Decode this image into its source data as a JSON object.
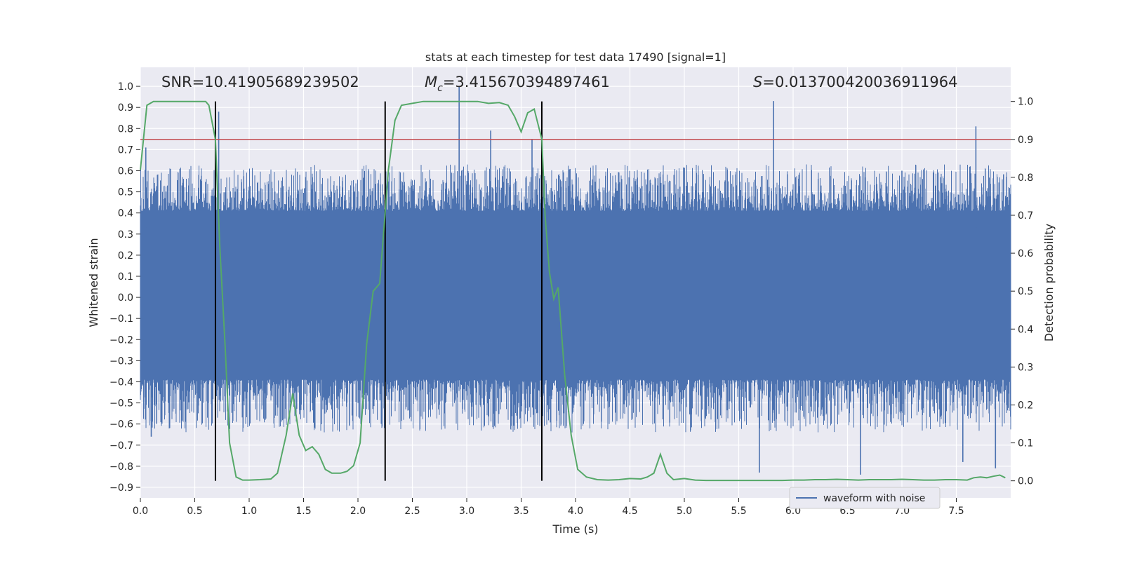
{
  "chart_data": {
    "type": "line",
    "title": "stats at each timestep for test data 17490 [signal=1]",
    "xlabel": "Time (s)",
    "ylabel_left": "Whitened strain",
    "ylabel_right": "Detection probability",
    "xlim": [
      0.0,
      8.0
    ],
    "ylim_left": [
      -0.95,
      1.09
    ],
    "ylim_right": [
      -0.045,
      1.09
    ],
    "x_ticks": [
      "0.0",
      "0.5",
      "1.0",
      "1.5",
      "2.0",
      "2.5",
      "3.0",
      "3.5",
      "4.0",
      "4.5",
      "5.0",
      "5.5",
      "6.0",
      "6.5",
      "7.0",
      "7.5"
    ],
    "y_ticks_left": [
      "−0.9",
      "−0.8",
      "−0.7",
      "−0.6",
      "−0.5",
      "−0.4",
      "−0.3",
      "−0.2",
      "−0.1",
      "0.0",
      "0.1",
      "0.2",
      "0.3",
      "0.4",
      "0.5",
      "0.6",
      "0.7",
      "0.8",
      "0.9",
      "1.0"
    ],
    "y_ticks_right": [
      "0.0",
      "0.1",
      "0.2",
      "0.3",
      "0.4",
      "0.5",
      "0.6",
      "0.7",
      "0.8",
      "0.9",
      "1.0"
    ],
    "annotations": {
      "snr": "SNR=10.41905689239502",
      "mc_symbol": "M",
      "mc_sub": "c",
      "mc_value": "=3.415670394897461",
      "s_symbol": "S",
      "s_value": "=0.013700420036911964"
    },
    "legend": {
      "label": "waveform with noise",
      "placement": "lower-right"
    },
    "threshold_probability": 0.9,
    "vertical_lines_s": [
      0.69,
      2.25,
      3.69
    ],
    "waveform": {
      "name": "waveform with noise",
      "color": "#4c72b0",
      "duration_s": 8.0,
      "dense_band": [
        -0.42,
        0.44
      ],
      "peaks": [
        {
          "t": 0.05,
          "v": 0.71
        },
        {
          "t": 0.1,
          "v": -0.66
        },
        {
          "t": 0.72,
          "v": 0.88
        },
        {
          "t": 1.52,
          "v": 0.57
        },
        {
          "t": 2.93,
          "v": 1.0
        },
        {
          "t": 3.22,
          "v": 0.79
        },
        {
          "t": 3.6,
          "v": 0.75
        },
        {
          "t": 5.82,
          "v": 0.93
        },
        {
          "t": 5.69,
          "v": -0.83
        },
        {
          "t": 6.62,
          "v": -0.84
        },
        {
          "t": 7.68,
          "v": 0.81
        },
        {
          "t": 7.56,
          "v": -0.78
        },
        {
          "t": 7.86,
          "v": -0.81
        },
        {
          "t": 7.0,
          "v": 0.6
        }
      ]
    },
    "probability_series": {
      "name": "Detection probability",
      "color": "#55a868",
      "x": [
        0.0,
        0.06,
        0.12,
        0.2,
        0.3,
        0.4,
        0.5,
        0.6,
        0.63,
        0.69,
        0.73,
        0.78,
        0.82,
        0.88,
        0.94,
        1.0,
        1.1,
        1.2,
        1.26,
        1.34,
        1.4,
        1.46,
        1.52,
        1.58,
        1.64,
        1.7,
        1.76,
        1.84,
        1.9,
        1.96,
        2.02,
        2.08,
        2.14,
        2.2,
        2.28,
        2.34,
        2.4,
        2.5,
        2.6,
        2.7,
        2.8,
        2.9,
        3.0,
        3.1,
        3.2,
        3.3,
        3.38,
        3.44,
        3.5,
        3.56,
        3.62,
        3.69,
        3.72,
        3.76,
        3.8,
        3.84,
        3.9,
        3.96,
        4.02,
        4.1,
        4.2,
        4.3,
        4.4,
        4.5,
        4.6,
        4.66,
        4.72,
        4.78,
        4.84,
        4.9,
        5.0,
        5.1,
        5.2,
        5.3,
        5.4,
        5.5,
        5.6,
        5.7,
        5.8,
        5.9,
        6.0,
        6.1,
        6.2,
        6.3,
        6.4,
        6.5,
        6.6,
        6.7,
        6.8,
        6.9,
        7.0,
        7.1,
        7.2,
        7.3,
        7.4,
        7.5,
        7.6,
        7.66,
        7.72,
        7.78,
        7.84,
        7.9,
        7.95
      ],
      "y": [
        0.82,
        0.99,
        1.0,
        1.0,
        1.0,
        1.0,
        1.0,
        1.0,
        0.99,
        0.9,
        0.62,
        0.35,
        0.1,
        0.01,
        0.002,
        0.002,
        0.003,
        0.005,
        0.02,
        0.12,
        0.23,
        0.12,
        0.08,
        0.09,
        0.07,
        0.03,
        0.02,
        0.02,
        0.025,
        0.04,
        0.1,
        0.36,
        0.5,
        0.52,
        0.82,
        0.95,
        0.99,
        0.995,
        1.0,
        1.0,
        1.0,
        1.0,
        1.0,
        1.0,
        0.995,
        0.997,
        0.99,
        0.96,
        0.92,
        0.97,
        0.98,
        0.9,
        0.7,
        0.55,
        0.48,
        0.51,
        0.28,
        0.12,
        0.03,
        0.01,
        0.003,
        0.002,
        0.003,
        0.006,
        0.005,
        0.01,
        0.02,
        0.07,
        0.02,
        0.003,
        0.006,
        0.002,
        0.001,
        0.001,
        0.001,
        0.001,
        0.001,
        0.001,
        0.001,
        0.001,
        0.002,
        0.002,
        0.003,
        0.003,
        0.004,
        0.003,
        0.002,
        0.003,
        0.003,
        0.003,
        0.004,
        0.003,
        0.002,
        0.002,
        0.003,
        0.003,
        0.002,
        0.008,
        0.01,
        0.008,
        0.012,
        0.015,
        0.008
      ]
    }
  }
}
